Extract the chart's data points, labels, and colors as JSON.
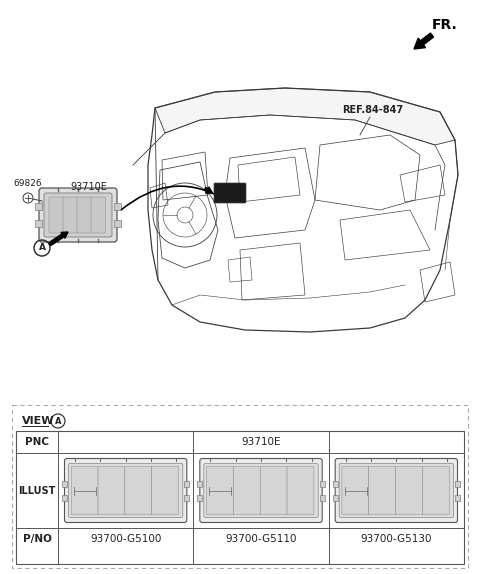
{
  "bg_color": "#ffffff",
  "fig_width": 4.8,
  "fig_height": 5.74,
  "fr_label": "FR.",
  "ref_label": "REF.84-847",
  "part_69826": "69826",
  "part_93710E": "93710E",
  "view_label": "VIEW",
  "view_circle_label": "A",
  "table_pnc": "PNC",
  "table_pnc_val": "93710E",
  "table_illust": "ILLUST",
  "table_pno": "P/NO",
  "part_numbers": [
    "93700-G5100",
    "93700-G5110",
    "93700-G5130"
  ],
  "line_color": "#3a3a3a",
  "dashed_color": "#999999",
  "text_color": "#222222",
  "table_border": "#555555"
}
